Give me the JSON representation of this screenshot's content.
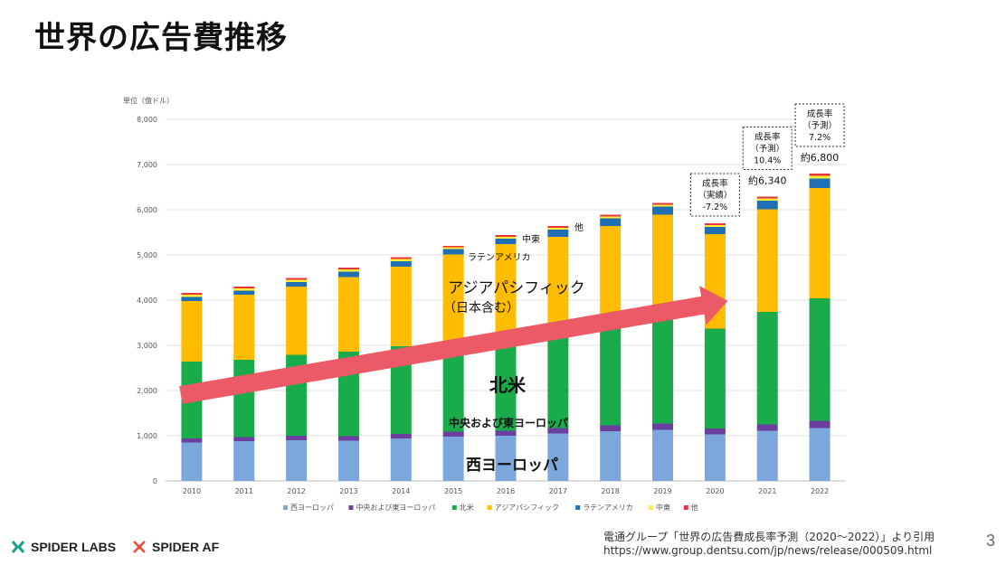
{
  "page": {
    "title": "世界の広告費推移",
    "source_line1": "電通グループ「世界の広告費成長率予測（2020～2022）」より引用",
    "source_line2": "https://www.group.dentsu.com/jp/news/release/000509.html",
    "page_number": "3",
    "logos": [
      {
        "name": "SPIDER LABS",
        "icon": "spider-labs-icon",
        "color": "#16a085"
      },
      {
        "name": "SPIDER AF",
        "icon": "spider-af-icon",
        "color": "#e74c3c"
      }
    ]
  },
  "chart_data": {
    "type": "bar",
    "stacked": true,
    "unit_label": "単位（億ドル）",
    "ylim": [
      0,
      8000
    ],
    "yticks": [
      "0",
      "1,000",
      "2,000",
      "3,000",
      "4,000",
      "5,000",
      "6,000",
      "7,000",
      "8,000"
    ],
    "grid": true,
    "categories": [
      "2010",
      "2011",
      "2012",
      "2013",
      "2014",
      "2015",
      "2016",
      "2017",
      "2018",
      "2019",
      "2020",
      "2021",
      "2022"
    ],
    "series": [
      {
        "name": "西ヨーロッパ",
        "color": "#7ba7dc",
        "values": [
          850,
          880,
          900,
          890,
          940,
          980,
          1000,
          1050,
          1100,
          1130,
          1030,
          1110,
          1170
        ]
      },
      {
        "name": "中央および東ヨーロッパ",
        "color": "#6b3fa0",
        "values": [
          90,
          90,
          100,
          100,
          100,
          110,
          110,
          120,
          130,
          140,
          130,
          140,
          160
        ]
      },
      {
        "name": "北米",
        "color": "#1aab4a",
        "values": [
          1700,
          1710,
          1790,
          1870,
          1940,
          1960,
          2020,
          2130,
          2200,
          2300,
          2210,
          2490,
          2710
        ]
      },
      {
        "name": "アジアパシフィック",
        "color": "#ffbc00",
        "values": [
          1340,
          1440,
          1510,
          1650,
          1760,
          1960,
          2110,
          2100,
          2210,
          2320,
          2090,
          2270,
          2440
        ]
      },
      {
        "name": "ラテンアメリカ",
        "color": "#1f6fb5",
        "values": [
          90,
          90,
          100,
          120,
          120,
          120,
          120,
          160,
          170,
          180,
          160,
          190,
          210
        ]
      },
      {
        "name": "中東",
        "color": "#ffee33",
        "values": [
          50,
          50,
          50,
          50,
          50,
          40,
          40,
          40,
          40,
          40,
          40,
          50,
          60
        ]
      },
      {
        "name": "他",
        "color": "#e8343c",
        "values": [
          40,
          40,
          40,
          40,
          40,
          30,
          40,
          40,
          40,
          40,
          40,
          40,
          50
        ]
      }
    ],
    "in_chart_labels": [
      {
        "text": "アジアパシフィック",
        "series": "アジアパシフィック"
      },
      {
        "text": "（日本含む）",
        "series": "アジアパシフィック"
      },
      {
        "text": "北米",
        "series": "北米"
      },
      {
        "text": "中央および東ヨーロッパ",
        "series": "中央および東ヨーロッパ"
      },
      {
        "text": "西ヨーロッパ",
        "series": "西ヨーロッパ"
      },
      {
        "text": "ラテンアメリカ",
        "series": "ラテンアメリカ"
      },
      {
        "text": "中東",
        "series": "中東"
      },
      {
        "text": "他",
        "series": "他"
      }
    ],
    "annotations": [
      {
        "category": "2020",
        "lines": [
          "成長率",
          "（実績）",
          "-7.2%"
        ]
      },
      {
        "category": "2021",
        "lines": [
          "成長率",
          "（予測）",
          "10.4%"
        ],
        "total_label": "約6,340"
      },
      {
        "category": "2022",
        "lines": [
          "成長率",
          "（予測）",
          "7.2%"
        ],
        "total_label": "約6,800"
      }
    ],
    "trend_arrow": {
      "color": "#eb5a66",
      "from_category": "2010",
      "to_category": "2020"
    },
    "legend_position": "bottom"
  }
}
